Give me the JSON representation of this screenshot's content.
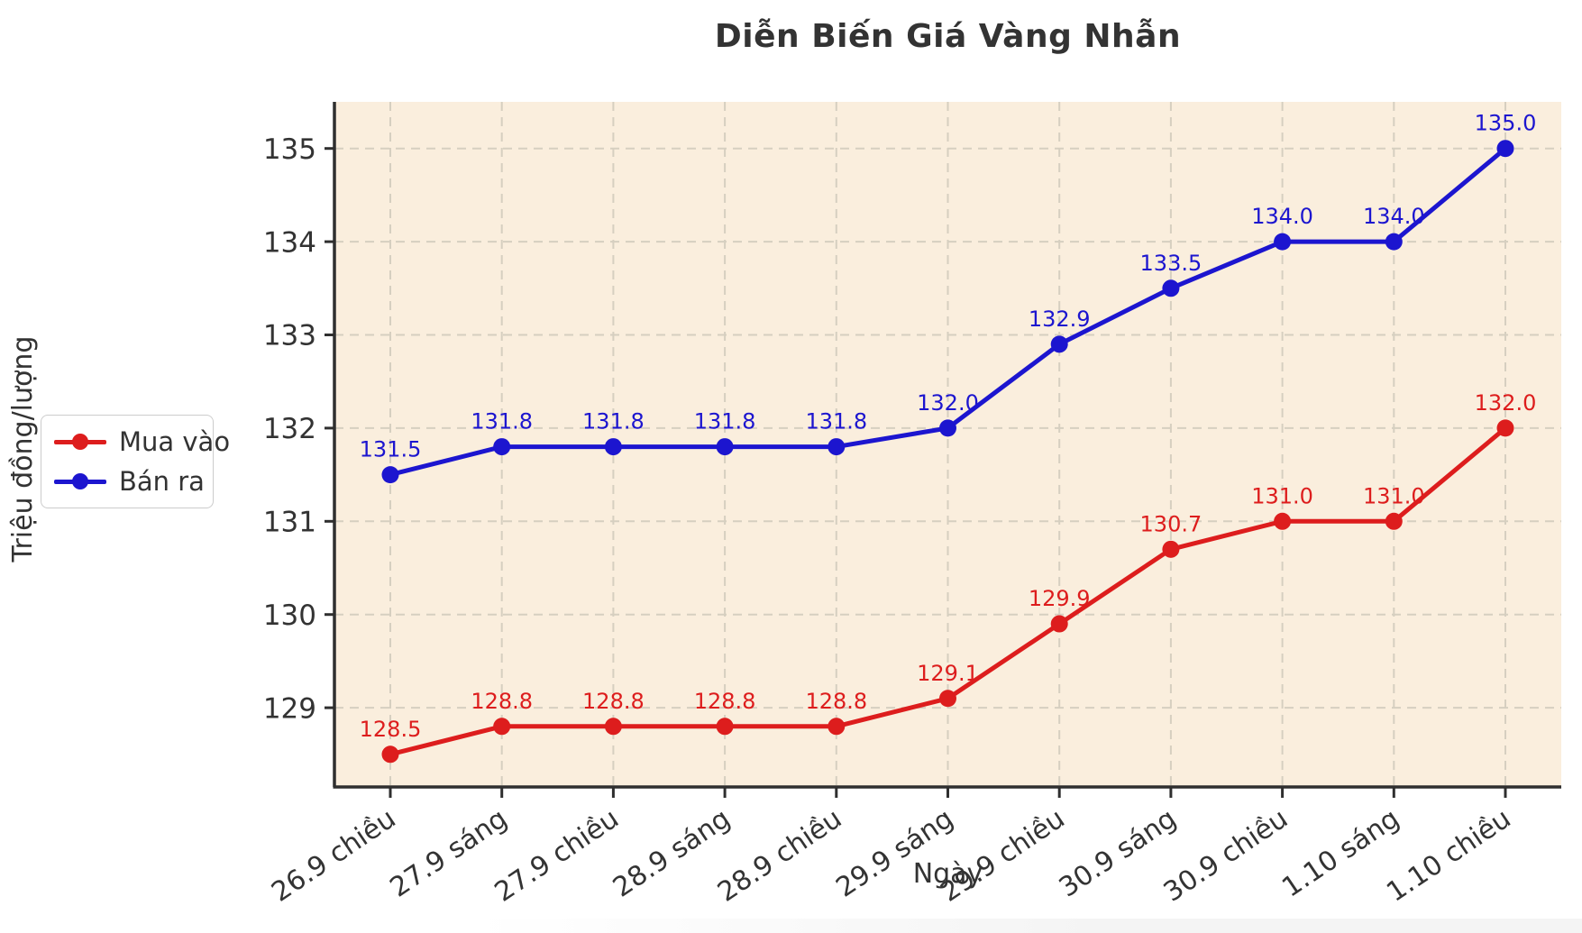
{
  "chart_data": {
    "type": "line",
    "title": "Diễn Biến Giá Vàng Nhẫn",
    "xlabel": "Ngày",
    "ylabel": "Triệu đồng/lượng",
    "categories": [
      "26.9 chiều",
      "27.9 sáng",
      "27.9 chiều",
      "28.9 sáng",
      "28.9 chiều",
      "29.9 sáng",
      "29.9 chiều",
      "30.9 sáng",
      "30.9 chiều",
      "1.10 sáng",
      "1.10 chiều"
    ],
    "series": [
      {
        "name": "Mua vào",
        "color": "#dd1d1d",
        "values": [
          128.5,
          128.8,
          128.8,
          128.8,
          128.8,
          129.1,
          129.9,
          130.7,
          131.0,
          131.0,
          132.0
        ]
      },
      {
        "name": "Bán ra",
        "color": "#1c15cf",
        "values": [
          131.5,
          131.8,
          131.8,
          131.8,
          131.8,
          132.0,
          132.9,
          133.5,
          134.0,
          134.0,
          135.0
        ]
      }
    ],
    "yticks": [
      129,
      130,
      131,
      132,
      133,
      134,
      135
    ],
    "ylim": [
      128.15,
      135.5
    ],
    "grid": true,
    "grid_style": "dashed",
    "legend_position": "outside-left",
    "point_labels": "one-decimal",
    "colors": {
      "plot_background": "#faeedd",
      "figure_background": "#ffffff",
      "grid": "#d6cfc0",
      "axis": "#2f2f2f",
      "text": "#333333"
    }
  }
}
